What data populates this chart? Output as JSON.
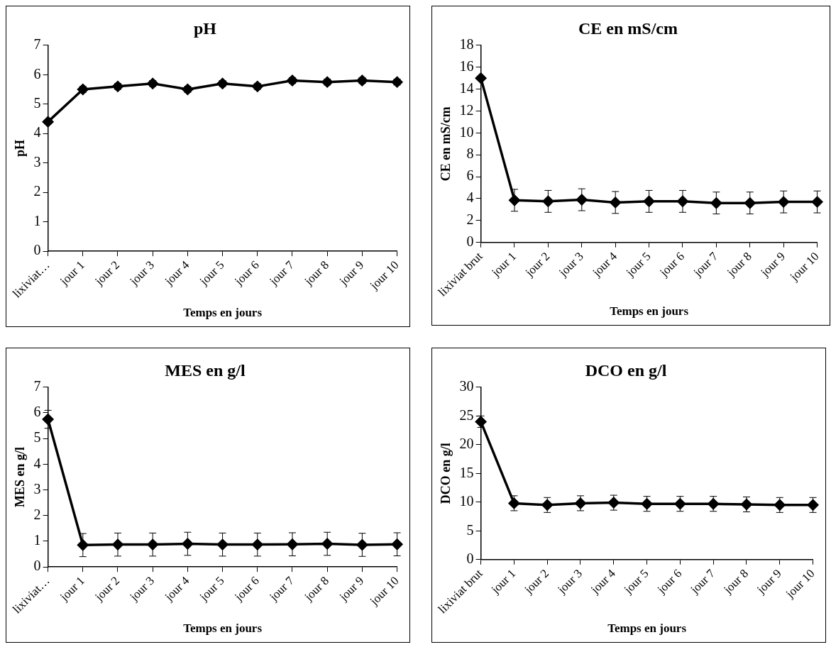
{
  "chart_data": [
    {
      "type": "line",
      "title": "pH",
      "xlabel": "Temps en jours",
      "ylabel": "pH",
      "categories": [
        "lixiviat…",
        "jour 1",
        "jour 2",
        "jour 3",
        "jour 4",
        "jour 5",
        "jour 6",
        "jour 7",
        "jour 8",
        "jour 9",
        "jour 10"
      ],
      "values": [
        4.4,
        5.5,
        5.6,
        5.7,
        5.5,
        5.7,
        5.6,
        5.8,
        5.75,
        5.8,
        5.75
      ],
      "errors": [
        null,
        0.1,
        0.1,
        0.1,
        0.1,
        0.1,
        0.1,
        0.1,
        0.1,
        0.1,
        0.1
      ],
      "color": "#000000",
      "ylim": [
        0,
        7
      ],
      "yticks": [
        0,
        1,
        2,
        3,
        4,
        5,
        6,
        7
      ],
      "grid": false,
      "legend": false,
      "marker": "diamond",
      "line_style": "solid"
    },
    {
      "type": "line",
      "title": "CE en mS/cm",
      "xlabel": "Temps en jours",
      "ylabel": "CE en mS/cm",
      "categories": [
        "lixiviat brut",
        "jour 1",
        "jour 2",
        "jour 3",
        "jour 4",
        "jour 5",
        "jour 6",
        "jour 7",
        "jour 8",
        "jour 9",
        "jour 10"
      ],
      "values": [
        15,
        3.85,
        3.75,
        3.9,
        3.65,
        3.75,
        3.75,
        3.6,
        3.6,
        3.7,
        3.7
      ],
      "errors": [
        null,
        1,
        1,
        1,
        1,
        1,
        1,
        1,
        1,
        1,
        1
      ],
      "color": "#000000",
      "ylim": [
        0,
        18
      ],
      "yticks": [
        0,
        2,
        4,
        6,
        8,
        10,
        12,
        14,
        16,
        18
      ],
      "grid": false,
      "legend": false,
      "marker": "diamond",
      "line_style": "solid"
    },
    {
      "type": "line",
      "title": "MES en g/l",
      "xlabel": "Temps en jours",
      "ylabel": "MES en g/l",
      "categories": [
        "lixiviat…",
        "jour 1",
        "jour 2",
        "jour 3",
        "jour 4",
        "jour 5",
        "jour 6",
        "jour 7",
        "jour 8",
        "jour 9",
        "jour 10"
      ],
      "values": [
        5.75,
        0.85,
        0.87,
        0.87,
        0.9,
        0.87,
        0.87,
        0.88,
        0.9,
        0.86,
        0.88
      ],
      "errors": [
        0.35,
        0.45,
        0.45,
        0.45,
        0.45,
        0.45,
        0.45,
        0.45,
        0.45,
        0.45,
        0.45
      ],
      "color": "#000000",
      "ylim": [
        0,
        7
      ],
      "yticks": [
        0,
        1,
        2,
        3,
        4,
        5,
        6,
        7
      ],
      "grid": false,
      "legend": false,
      "marker": "diamond",
      "line_style": "solid"
    },
    {
      "type": "line",
      "title": "DCO en g/l",
      "xlabel": "Temps en jours",
      "ylabel": "DCO en g/l",
      "categories": [
        "lixiviat brut",
        "jour 1",
        "jour 2",
        "jour 3",
        "jour 4",
        "jour 5",
        "jour 6",
        "jour 7",
        "jour 8",
        "jour 9",
        "jour 10"
      ],
      "values": [
        24,
        9.8,
        9.5,
        9.8,
        9.9,
        9.7,
        9.7,
        9.7,
        9.6,
        9.5,
        9.5
      ],
      "errors": [
        1,
        1.3,
        1.3,
        1.3,
        1.3,
        1.3,
        1.3,
        1.3,
        1.3,
        1.3,
        1.3
      ],
      "color": "#000000",
      "ylim": [
        0,
        30
      ],
      "yticks": [
        0,
        5,
        10,
        15,
        20,
        25,
        30
      ],
      "grid": false,
      "legend": false,
      "marker": "diamond",
      "line_style": "solid"
    }
  ]
}
